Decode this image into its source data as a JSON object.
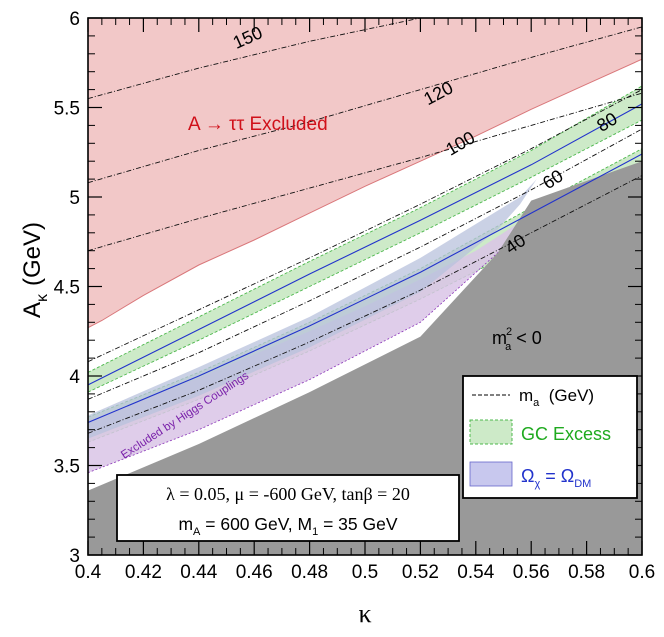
{
  "chart_data": {
    "type": "contour",
    "xlabel": "κ",
    "ylabel_main": "A",
    "ylabel_sub": "κ",
    "ylabel_unit": "(GeV)",
    "xlim": [
      0.4,
      0.6
    ],
    "ylim": [
      3,
      6
    ],
    "xticks": [
      0.4,
      0.42,
      0.44,
      0.46,
      0.48,
      0.5,
      0.52,
      0.54,
      0.56,
      0.58,
      0.6
    ],
    "yticks": [
      3,
      3.5,
      4,
      4.5,
      5,
      5.5,
      6
    ],
    "xtick_labels": [
      "0.4",
      "0.42",
      "0.44",
      "0.46",
      "0.48",
      "0.5",
      "0.52",
      "0.54",
      "0.56",
      "0.58",
      "0.6"
    ],
    "ytick_labels": [
      "3",
      "3.5",
      "4",
      "4.5",
      "5",
      "5.5",
      "6"
    ],
    "regions": {
      "tachyonic": {
        "label_main": "m",
        "label_sup": "2",
        "label_sub": "a",
        "label_rel": " < 0",
        "color": "#999999",
        "boundary": [
          [
            0.4,
            3.36
          ],
          [
            0.44,
            3.62
          ],
          [
            0.48,
            3.91
          ],
          [
            0.52,
            4.22
          ],
          [
            0.548,
            4.69
          ],
          [
            0.56,
            4.98
          ],
          [
            0.6,
            5.2
          ]
        ]
      },
      "atautau": {
        "label": "A → ττ Excluded",
        "color": "#f2c8c8",
        "stroke": "#d9777a",
        "boundary": [
          [
            0.4,
            4.27
          ],
          [
            0.405,
            4.31
          ],
          [
            0.42,
            4.45
          ],
          [
            0.44,
            4.62
          ],
          [
            0.46,
            4.76
          ],
          [
            0.48,
            4.91
          ],
          [
            0.5,
            5.06
          ],
          [
            0.52,
            5.2
          ],
          [
            0.54,
            5.34
          ],
          [
            0.56,
            5.49
          ],
          [
            0.58,
            5.63
          ],
          [
            0.6,
            5.77
          ]
        ]
      },
      "higgs": {
        "label": "Excluded by Higgs Couplings",
        "color": "#d9c4e6",
        "stroke": "#8a33b8",
        "upper": [
          [
            0.4,
            3.75
          ],
          [
            0.42,
            3.87
          ],
          [
            0.44,
            3.99
          ],
          [
            0.46,
            4.12
          ],
          [
            0.48,
            4.25
          ],
          [
            0.5,
            4.39
          ],
          [
            0.52,
            4.54
          ],
          [
            0.54,
            4.7
          ],
          [
            0.556,
            4.86
          ]
        ],
        "lower": [
          [
            0.4,
            3.46
          ],
          [
            0.44,
            3.7
          ],
          [
            0.48,
            3.98
          ],
          [
            0.52,
            4.3
          ],
          [
            0.548,
            4.69
          ],
          [
            0.556,
            4.86
          ]
        ]
      },
      "gc_excess": {
        "color": "#cdeac8",
        "stroke": "#4db84d",
        "bands": [
          {
            "upper": [
              [
                0.4,
                4.02
              ],
              [
                0.44,
                4.33
              ],
              [
                0.48,
                4.64
              ],
              [
                0.52,
                4.94
              ],
              [
                0.56,
                5.26
              ],
              [
                0.6,
                5.62
              ]
            ],
            "lower": [
              [
                0.4,
                3.91
              ],
              [
                0.44,
                4.2
              ],
              [
                0.48,
                4.5
              ],
              [
                0.52,
                4.8
              ],
              [
                0.56,
                5.11
              ],
              [
                0.6,
                5.43
              ]
            ]
          },
          {
            "upper": [
              [
                0.4,
                3.77
              ],
              [
                0.44,
                4.02
              ],
              [
                0.48,
                4.3
              ],
              [
                0.52,
                4.6
              ],
              [
                0.56,
                4.94
              ],
              [
                0.6,
                5.27
              ]
            ],
            "lower": [
              [
                0.4,
                3.63
              ],
              [
                0.44,
                3.87
              ],
              [
                0.48,
                4.14
              ],
              [
                0.52,
                4.43
              ],
              [
                0.56,
                4.74
              ],
              [
                0.6,
                5.06
              ]
            ]
          }
        ]
      },
      "relic_band": {
        "color": "#b8c2dc",
        "upper": [
          [
            0.4,
            3.78
          ],
          [
            0.44,
            4.05
          ],
          [
            0.48,
            4.33
          ],
          [
            0.52,
            4.66
          ],
          [
            0.556,
            5.0
          ],
          [
            0.562,
            5.1
          ]
        ],
        "lower": [
          [
            0.4,
            3.65
          ],
          [
            0.44,
            3.89
          ],
          [
            0.48,
            4.16
          ],
          [
            0.52,
            4.47
          ],
          [
            0.548,
            4.82
          ],
          [
            0.556,
            4.96
          ]
        ]
      },
      "relic_lines": {
        "color": "#2233cc",
        "lines": [
          [
            [
              0.4,
              3.95
            ],
            [
              0.44,
              4.26
            ],
            [
              0.48,
              4.57
            ],
            [
              0.52,
              4.87
            ],
            [
              0.56,
              5.18
            ],
            [
              0.6,
              5.52
            ]
          ],
          [
            [
              0.4,
              3.74
            ],
            [
              0.44,
              4.0
            ],
            [
              0.48,
              4.28
            ],
            [
              0.52,
              4.58
            ],
            [
              0.56,
              4.91
            ],
            [
              0.6,
              5.24
            ]
          ]
        ]
      }
    },
    "ma_contours": [
      {
        "label": "150",
        "label_at": [
          0.4585,
          5.86
        ],
        "label_angle": -24,
        "points": [
          [
            0.4,
            5.55
          ],
          [
            0.44,
            5.72
          ],
          [
            0.48,
            5.87
          ],
          [
            0.52,
            6.0
          ]
        ]
      },
      {
        "label": "120",
        "label_at": [
          0.5275,
          5.55
        ],
        "label_angle": -28,
        "points": [
          [
            0.4,
            5.08
          ],
          [
            0.44,
            5.26
          ],
          [
            0.48,
            5.42
          ],
          [
            0.52,
            5.6
          ],
          [
            0.56,
            5.78
          ],
          [
            0.6,
            5.95
          ]
        ]
      },
      {
        "label": "100",
        "label_at": [
          0.5355,
          5.27
        ],
        "label_angle": -30,
        "points": [
          [
            0.4,
            4.7
          ],
          [
            0.44,
            4.88
          ],
          [
            0.48,
            5.05
          ],
          [
            0.52,
            5.22
          ],
          [
            0.56,
            5.4
          ],
          [
            0.6,
            5.58
          ]
        ]
      },
      {
        "label": "80",
        "label_at": [
          0.5885,
          5.39
        ],
        "label_angle": -31,
        "points": [
          [
            0.4,
            4.08
          ],
          [
            0.44,
            4.37
          ],
          [
            0.48,
            4.66
          ],
          [
            0.52,
            4.96
          ],
          [
            0.56,
            5.27
          ],
          [
            0.6,
            5.6
          ]
        ]
      },
      {
        "label": "60",
        "label_at": [
          0.569,
          5.07
        ],
        "label_angle": -33,
        "points": [
          [
            0.4,
            3.87
          ],
          [
            0.44,
            4.13
          ],
          [
            0.48,
            4.42
          ],
          [
            0.52,
            4.72
          ],
          [
            0.56,
            5.04
          ],
          [
            0.6,
            5.38
          ]
        ]
      },
      {
        "label": "40",
        "label_at": [
          0.5555,
          4.71
        ],
        "label_angle": -34,
        "points": [
          [
            0.4,
            3.68
          ],
          [
            0.44,
            3.92
          ],
          [
            0.48,
            4.19
          ],
          [
            0.52,
            4.48
          ],
          [
            0.56,
            4.8
          ],
          [
            0.6,
            5.12
          ]
        ]
      }
    ],
    "legend": {
      "placement": "right",
      "items": [
        {
          "label": "m",
          "sub": "a",
          "suffix": "  (GeV)",
          "style": "dashed-line"
        },
        {
          "label": "GC Excess",
          "style": "green-box",
          "color": "#1faa1f"
        },
        {
          "label": "Ω",
          "sub": "χ",
          "mid": " = Ω",
          "sub2": "DM",
          "style": "blue-box",
          "color": "#2233cc"
        }
      ]
    },
    "params_box": {
      "line1": "λ = 0.05, μ = -600 GeV, tanβ = 20",
      "line2_a": "m",
      "line2_a_sub": "A",
      "line2_b": " = 600 GeV, M",
      "line2_b_sub": "1",
      "line2_c": " = 35 GeV"
    }
  }
}
